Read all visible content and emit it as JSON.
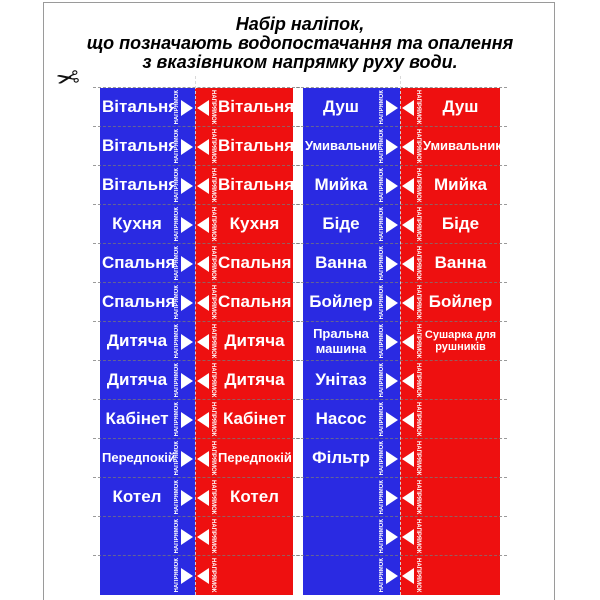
{
  "title": {
    "lines": [
      "Набір наліпок,",
      "що позначають водопостачання та опалення",
      "з вказівником напрямку руху води."
    ]
  },
  "scissors_icon": "✂",
  "direction_label": "НАПРЯМОК",
  "colors": {
    "blue": "#2a2ae2",
    "red": "#ee1010",
    "label_text": "#ffffff",
    "frame": "#9a9a9a",
    "title_text": "#000000"
  },
  "columns": [
    {
      "rows": [
        {
          "blue": "Вітальня",
          "red": "Вітальня"
        },
        {
          "blue": "Вітальня",
          "red": "Вітальня"
        },
        {
          "blue": "Вітальня",
          "red": "Вітальня"
        },
        {
          "blue": "Кухня",
          "red": "Кухня"
        },
        {
          "blue": "Спальня",
          "red": "Спальня"
        },
        {
          "blue": "Спальня",
          "red": "Спальня"
        },
        {
          "blue": "Дитяча",
          "red": "Дитяча"
        },
        {
          "blue": "Дитяча",
          "red": "Дитяча"
        },
        {
          "blue": "Кабінет",
          "red": "Кабінет"
        },
        {
          "blue": "Передпокій",
          "red": "Передпокій"
        },
        {
          "blue": "Котел",
          "red": "Котел"
        },
        {
          "blue": "",
          "red": ""
        },
        {
          "blue": "",
          "red": ""
        }
      ]
    },
    {
      "rows": [
        {
          "blue": "Душ",
          "red": "Душ"
        },
        {
          "blue": "Умивальник",
          "red": "Умивальник"
        },
        {
          "blue": "Мийка",
          "red": "Мийка"
        },
        {
          "blue": "Біде",
          "red": "Біде"
        },
        {
          "blue": "Ванна",
          "red": "Ванна"
        },
        {
          "blue": "Бойлер",
          "red": "Бойлер"
        },
        {
          "blue": "Пральна машина",
          "red": "Сушарка для рушників"
        },
        {
          "blue": "Унітаз",
          "red": ""
        },
        {
          "blue": "Насос",
          "red": ""
        },
        {
          "blue": "Фільтр",
          "red": ""
        },
        {
          "blue": "",
          "red": ""
        },
        {
          "blue": "",
          "red": ""
        },
        {
          "blue": "",
          "red": ""
        }
      ]
    }
  ]
}
